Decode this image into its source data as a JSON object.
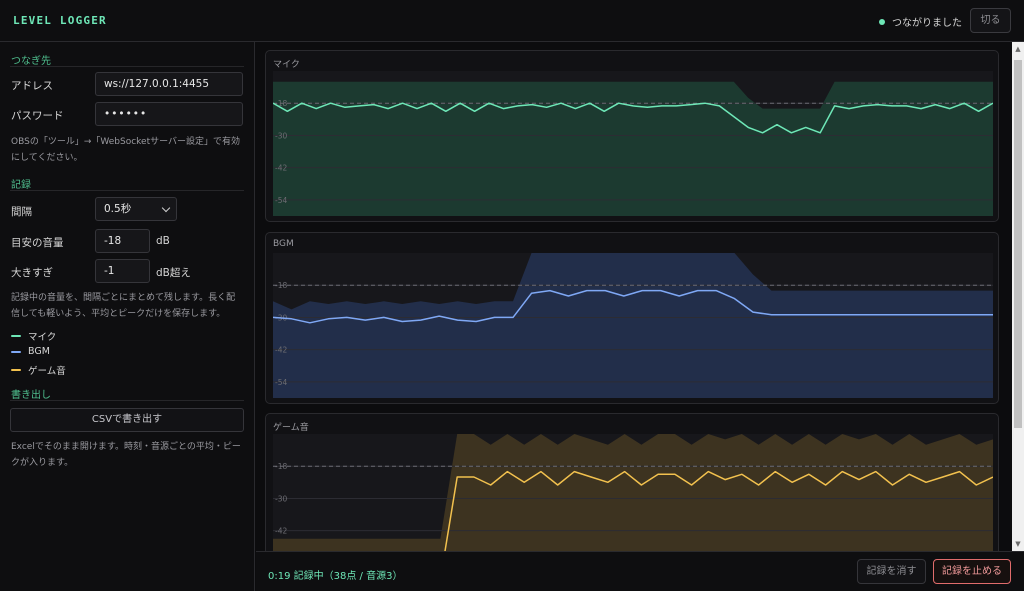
{
  "app": {
    "title": "LEVEL LOGGER"
  },
  "connection": {
    "status": "つながりました",
    "status_color": "#6ee7b7",
    "disconnect_label": "切る"
  },
  "sidebar": {
    "connect_title": "つなぎ先",
    "address_label": "アドレス",
    "address_value": "ws://127.0.0.1:4455",
    "password_label": "パスワード",
    "password_value": "••••••",
    "connect_hint": "OBSの「ツール」→「WebSocketサーバー設定」で有効にしてください。",
    "record_title": "記録",
    "interval_label": "間隔",
    "interval_value": "0.5秒",
    "target_label": "目安の音量",
    "target_value": "-18",
    "target_unit": "dB",
    "loud_label": "大きすぎ",
    "loud_value": "-1",
    "loud_unit": "dB超え",
    "record_hint": "記録中の音量を、間隔ごとにまとめて残します。長く配信しても軽いよう、平均とピークだけを保存します。",
    "legend": [
      {
        "label": "マイク",
        "color": "#6ee7b7"
      },
      {
        "label": "BGM",
        "color": "#7fa8f5"
      },
      {
        "label": "ゲーム音",
        "color": "#f2c14e"
      }
    ],
    "export_title": "書き出し",
    "csv_button": "CSVで書き出す",
    "export_hint": "Excelでそのまま開けます。時刻・音源ごとの平均・ピークが入ります。"
  },
  "panels": [
    {
      "title": "マイク",
      "color": "#6ee7b7",
      "fill": "#1c3a30"
    },
    {
      "title": "BGM",
      "color": "#7fa8f5",
      "fill": "#222e4a"
    },
    {
      "title": "ゲーム音",
      "color": "#f2c14e",
      "fill": "#3d3320"
    }
  ],
  "chart_data": [
    {
      "type": "line",
      "series_name": "マイク",
      "yticks": [
        "-18",
        "-30",
        "-42",
        "-54"
      ],
      "ylim": [
        -60,
        -6
      ],
      "target_db": -18,
      "avg": [
        -18,
        -21,
        -18,
        -20,
        -18,
        -19.5,
        -19,
        -18.5,
        -20,
        -18,
        -20,
        -18,
        -21,
        -18,
        -21,
        -18,
        -20,
        -19,
        -18.5,
        -19.5,
        -18,
        -20,
        -18,
        -21,
        -18,
        -19,
        -19.5,
        -19,
        -19,
        -18.5,
        -18,
        -19,
        -23,
        -27,
        -29,
        -26,
        -29,
        -27,
        -29,
        -19,
        -20,
        -19,
        -18.5,
        -19,
        -19,
        -20,
        -18.5,
        -20,
        -18,
        -21,
        -18
      ],
      "peak": [
        -10,
        -10,
        -10,
        -10,
        -10,
        -10,
        -10,
        -10,
        -10,
        -10,
        -10,
        -10,
        -10,
        -10,
        -10,
        -10,
        -10,
        -10,
        -10,
        -10,
        -10,
        -10,
        -10,
        -10,
        -10,
        -10,
        -10,
        -10,
        -10,
        -10,
        -10,
        -10,
        -10,
        -16,
        -20,
        -20,
        -20,
        -20,
        -20,
        -10,
        -10,
        -10,
        -10,
        -10,
        -10,
        -10,
        -10,
        -10,
        -10,
        -10,
        -10
      ]
    },
    {
      "type": "line",
      "series_name": "BGM",
      "yticks": [
        "-18",
        "-30",
        "-42",
        "-54"
      ],
      "ylim": [
        -60,
        -6
      ],
      "target_db": -18,
      "avg": [
        -30,
        -30.5,
        -32,
        -30.5,
        -30,
        -31,
        -30,
        -31.5,
        -31,
        -29.5,
        -31,
        -31.5,
        -30,
        -30,
        -21,
        -20,
        -22,
        -20,
        -20,
        -22,
        -20,
        -20,
        -22,
        -20,
        -20,
        -23,
        -28,
        -29,
        -29,
        -29,
        -29,
        -29,
        -29,
        -29,
        -29,
        -29,
        -29,
        -29,
        -29,
        -29
      ],
      "peak": [
        -24,
        -27,
        -24,
        -25,
        -24,
        -25,
        -24,
        -25,
        -24,
        -25,
        -24,
        -25,
        -24,
        -24,
        -6,
        -6,
        -6,
        -6,
        -6,
        -6,
        -6,
        -6,
        -6,
        -6,
        -6,
        -6,
        -14,
        -20,
        -20,
        -20,
        -20,
        -20,
        -20,
        -20,
        -20,
        -20,
        -20,
        -20,
        -20,
        -20
      ]
    },
    {
      "type": "line",
      "series_name": "ゲーム音",
      "yticks": [
        "-18",
        "-30",
        "-42"
      ],
      "ylim": [
        -60,
        -6
      ],
      "target_db": -18,
      "avg": [
        -60,
        -60,
        -60,
        -60,
        -60,
        -60,
        -60,
        -60,
        -60,
        -60,
        -60,
        -22,
        -22,
        -25,
        -20,
        -24,
        -20,
        -25,
        -20,
        -22,
        -24,
        -20,
        -25,
        -21,
        -21,
        -25,
        -20,
        -23,
        -21,
        -25,
        -20,
        -24,
        -21,
        -25,
        -20,
        -23,
        -20,
        -25,
        -21,
        -24,
        -22,
        -20,
        -25,
        -22
      ],
      "peak": [
        -45,
        -45,
        -45,
        -45,
        -45,
        -45,
        -45,
        -45,
        -45,
        -45,
        -45,
        -6,
        -6,
        -10,
        -6,
        -10,
        -6,
        -10,
        -6,
        -8,
        -10,
        -6,
        -10,
        -6,
        -6,
        -10,
        -6,
        -8,
        -6,
        -10,
        -6,
        -10,
        -6,
        -10,
        -6,
        -8,
        -6,
        -10,
        -6,
        -10,
        -8,
        -6,
        -10,
        -8
      ]
    }
  ],
  "footer": {
    "status": "0:19 記録中（38点 / 音源3）",
    "clear_label": "記録を消す",
    "stop_label": "記録を止める"
  }
}
